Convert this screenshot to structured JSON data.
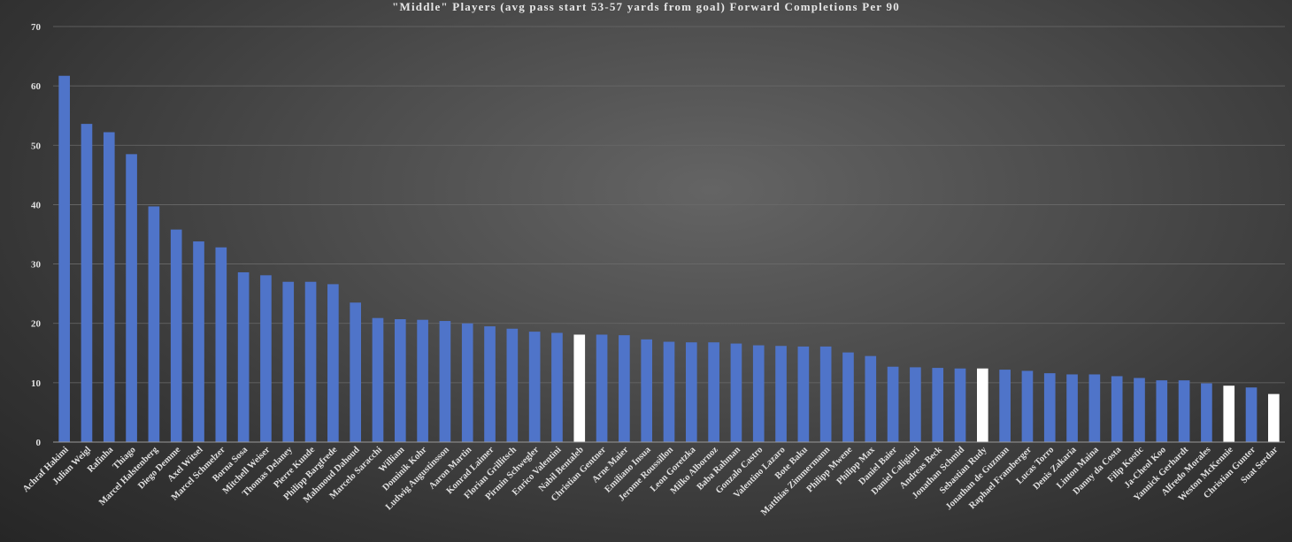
{
  "chart_data": {
    "type": "bar",
    "title": "\"Middle\" Players (avg pass start 53-57 yards from goal) Forward Completions Per 90",
    "xlabel": "",
    "ylabel": "",
    "ylim": [
      0,
      70
    ],
    "yticks": [
      0,
      10,
      20,
      30,
      40,
      50,
      60,
      70
    ],
    "grid": true,
    "legend": "none",
    "colors": {
      "default_bar": "#4f74c9",
      "highlight_bar": "#ffffff",
      "text": "#e0e0e0",
      "grid": "#6a6a6a"
    },
    "categories": [
      "Achraf Hakimi",
      "Julian Weigl",
      "Rafinha",
      "Thiago",
      "Marcel Halstenberg",
      "Diego Demme",
      "Axel Witsel",
      "Marcel Schmelzer",
      "Borna Sosa",
      "Mitchell Weiser",
      "Thomas Delaney",
      "Pierre Kunde",
      "Philipp Bargfrede",
      "Mahmoud Dahoud",
      "Marcelo Saracchi",
      "William",
      "Dominik Kohr",
      "Ludwig Augustinsson",
      "Aaron Martin",
      "Konrad Laimer",
      "Florian Grillitsch",
      "Pirmin Schwegler",
      "Enrico Valentini",
      "Nabil Bentaleb",
      "Christian Gentner",
      "Arne Maier",
      "Emiliano Insua",
      "Jerome Roussillon",
      "Leon Goretzka",
      "Milko Albornoz",
      "Baba Rahman",
      "Gonzalo Castro",
      "Valentino Lazaro",
      "Bote Baku",
      "Matthias Zimmermann",
      "Philipp Mwene",
      "Philipp Max",
      "Daniel Baier",
      "Daniel Caligiuri",
      "Andreas Beck",
      "Jonathan Schmid",
      "Sebastian Rudy",
      "Jonathan de Guzman",
      "Raphael Framberger",
      "Lucas Torro",
      "Denis Zakaria",
      "Linton Maina",
      "Danny da Costa",
      "Filip Kostic",
      "Ja-Cheol Koo",
      "Yannick Gerhardt",
      "Alfredo Morales",
      "Weston McKennie",
      "Christian Gunter",
      "Suat Serdar"
    ],
    "values": [
      61.7,
      53.6,
      52.2,
      48.5,
      39.7,
      35.8,
      33.8,
      32.8,
      28.6,
      28.1,
      27.0,
      27.0,
      26.6,
      23.5,
      20.9,
      20.7,
      20.6,
      20.4,
      20.0,
      19.5,
      19.1,
      18.6,
      18.4,
      18.1,
      18.1,
      18.0,
      17.3,
      16.9,
      16.8,
      16.8,
      16.6,
      16.3,
      16.2,
      16.1,
      16.1,
      15.1,
      14.5,
      12.7,
      12.6,
      12.5,
      12.4,
      12.4,
      12.2,
      12.0,
      11.6,
      11.4,
      11.4,
      11.1,
      10.8,
      10.4,
      10.4,
      9.9,
      9.5,
      9.2,
      8.1
    ],
    "highlighted": [
      "Nabil Bentaleb",
      "Sebastian Rudy",
      "Weston McKennie",
      "Suat Serdar"
    ]
  }
}
